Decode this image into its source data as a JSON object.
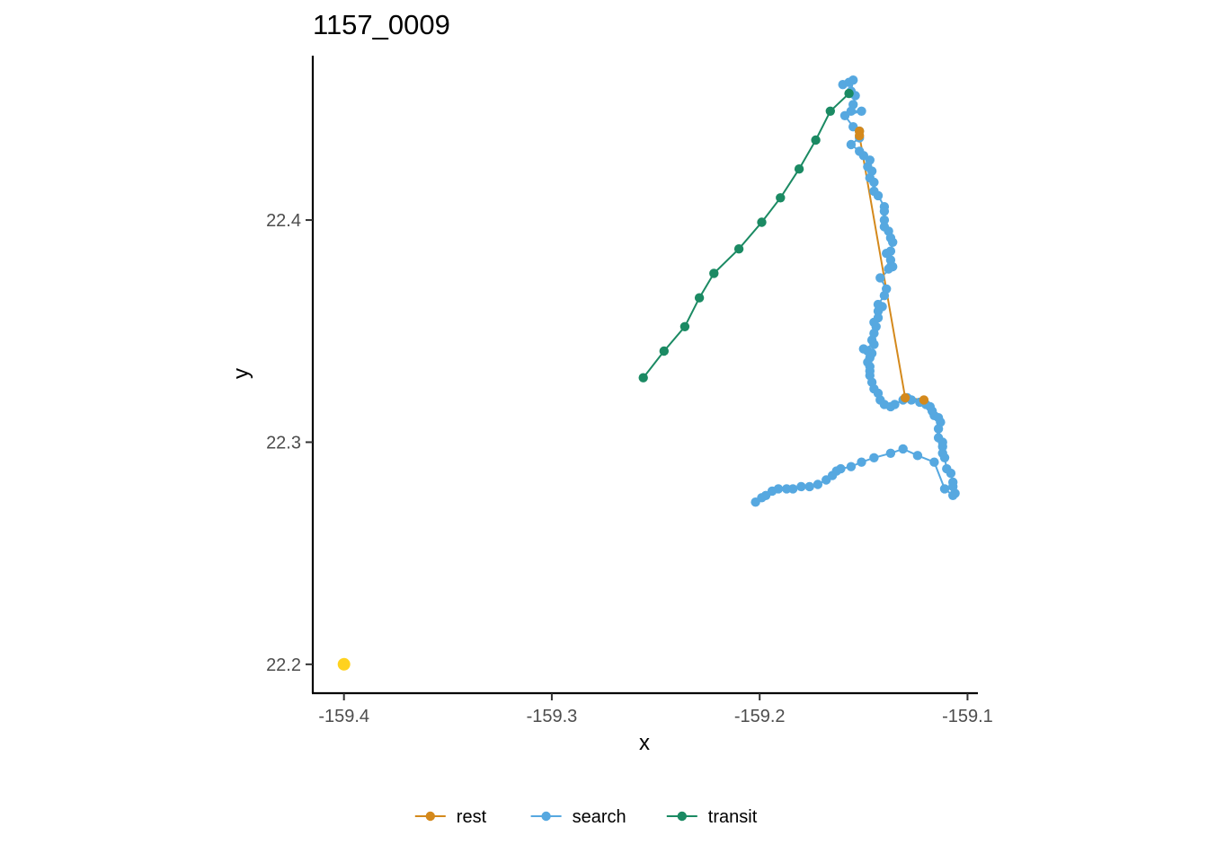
{
  "chart_data": {
    "type": "scatter",
    "title": "1157_0009",
    "xlabel": "x",
    "ylabel": "y",
    "xlim": [
      -159.415,
      -159.095
    ],
    "ylim": [
      22.187,
      22.474
    ],
    "x_ticks": [
      -159.4,
      -159.3,
      -159.2,
      -159.1
    ],
    "x_tick_labels": [
      "-159.4",
      "-159.3",
      "-159.2",
      "-159.1"
    ],
    "y_ticks": [
      22.2,
      22.3,
      22.4
    ],
    "y_tick_labels": [
      "22.2",
      "22.3",
      "22.4"
    ],
    "grid": false,
    "legend_position": "bottom",
    "colors": {
      "rest": "#d4891c",
      "search": "#56a8e0",
      "transit": "#1b8a63",
      "start": "#ffd21f"
    },
    "series": [
      {
        "name": "transit",
        "points": [
          [
            -159.256,
            22.329
          ],
          [
            -159.246,
            22.341
          ],
          [
            -159.236,
            22.352
          ],
          [
            -159.229,
            22.365
          ],
          [
            -159.222,
            22.376
          ],
          [
            -159.21,
            22.387
          ],
          [
            -159.199,
            22.399
          ],
          [
            -159.19,
            22.41
          ],
          [
            -159.181,
            22.423
          ],
          [
            -159.173,
            22.436
          ],
          [
            -159.166,
            22.449
          ],
          [
            -159.157,
            22.457
          ]
        ]
      },
      {
        "name": "search",
        "points": [
          [
            -159.16,
            22.461
          ],
          [
            -159.157,
            22.462
          ],
          [
            -159.155,
            22.463
          ],
          [
            -159.156,
            22.458
          ],
          [
            -159.154,
            22.456
          ],
          [
            -159.155,
            22.452
          ],
          [
            -159.156,
            22.449
          ],
          [
            -159.151,
            22.449
          ],
          [
            -159.159,
            22.447
          ],
          [
            -159.155,
            22.442
          ],
          [
            -159.152,
            22.44
          ],
          [
            -159.152,
            22.437
          ],
          [
            -159.156,
            22.434
          ],
          [
            -159.152,
            22.431
          ],
          [
            -159.15,
            22.429
          ],
          [
            -159.147,
            22.427
          ],
          [
            -159.148,
            22.424
          ],
          [
            -159.146,
            22.422
          ],
          [
            -159.147,
            22.419
          ],
          [
            -159.145,
            22.417
          ],
          [
            -159.145,
            22.413
          ],
          [
            -159.143,
            22.411
          ],
          [
            -159.14,
            22.406
          ],
          [
            -159.14,
            22.404
          ],
          [
            -159.14,
            22.4
          ],
          [
            -159.14,
            22.397
          ],
          [
            -159.138,
            22.395
          ],
          [
            -159.137,
            22.392
          ],
          [
            -159.136,
            22.39
          ],
          [
            -159.137,
            22.386
          ],
          [
            -159.139,
            22.385
          ],
          [
            -159.137,
            22.382
          ],
          [
            -159.137,
            22.379
          ],
          [
            -159.138,
            22.378
          ],
          [
            -159.136,
            22.379
          ],
          [
            -159.142,
            22.374
          ],
          [
            -159.139,
            22.369
          ],
          [
            -159.14,
            22.366
          ],
          [
            -159.143,
            22.362
          ],
          [
            -159.141,
            22.361
          ],
          [
            -159.143,
            22.359
          ],
          [
            -159.143,
            22.356
          ],
          [
            -159.145,
            22.354
          ],
          [
            -159.144,
            22.352
          ],
          [
            -159.145,
            22.349
          ],
          [
            -159.146,
            22.346
          ],
          [
            -159.145,
            22.344
          ],
          [
            -159.15,
            22.342
          ],
          [
            -159.148,
            22.341
          ],
          [
            -159.146,
            22.34
          ],
          [
            -159.147,
            22.338
          ],
          [
            -159.148,
            22.336
          ],
          [
            -159.147,
            22.334
          ],
          [
            -159.147,
            22.332
          ],
          [
            -159.147,
            22.33
          ],
          [
            -159.146,
            22.327
          ],
          [
            -159.145,
            22.324
          ],
          [
            -159.143,
            22.322
          ],
          [
            -159.142,
            22.319
          ],
          [
            -159.14,
            22.317
          ],
          [
            -159.137,
            22.316
          ],
          [
            -159.135,
            22.317
          ],
          [
            -159.131,
            22.319
          ],
          [
            -159.129,
            22.32
          ],
          [
            -159.127,
            22.319
          ],
          [
            -159.123,
            22.318
          ],
          [
            -159.12,
            22.317
          ],
          [
            -159.118,
            22.316
          ],
          [
            -159.117,
            22.314
          ],
          [
            -159.116,
            22.312
          ],
          [
            -159.114,
            22.311
          ],
          [
            -159.113,
            22.309
          ],
          [
            -159.114,
            22.306
          ],
          [
            -159.114,
            22.302
          ],
          [
            -159.112,
            22.3
          ],
          [
            -159.112,
            22.298
          ],
          [
            -159.112,
            22.295
          ],
          [
            -159.111,
            22.293
          ],
          [
            -159.11,
            22.288
          ],
          [
            -159.108,
            22.286
          ],
          [
            -159.107,
            22.282
          ],
          [
            -159.107,
            22.28
          ],
          [
            -159.106,
            22.277
          ],
          [
            -159.107,
            22.276
          ],
          [
            -159.111,
            22.279
          ],
          [
            -159.116,
            22.291
          ],
          [
            -159.124,
            22.294
          ],
          [
            -159.131,
            22.297
          ],
          [
            -159.137,
            22.295
          ],
          [
            -159.145,
            22.293
          ],
          [
            -159.151,
            22.291
          ],
          [
            -159.156,
            22.289
          ],
          [
            -159.161,
            22.288
          ],
          [
            -159.163,
            22.287
          ],
          [
            -159.165,
            22.285
          ],
          [
            -159.168,
            22.283
          ],
          [
            -159.172,
            22.281
          ],
          [
            -159.176,
            22.28
          ],
          [
            -159.18,
            22.28
          ],
          [
            -159.184,
            22.279
          ],
          [
            -159.187,
            22.279
          ],
          [
            -159.191,
            22.279
          ],
          [
            -159.194,
            22.278
          ],
          [
            -159.197,
            22.276
          ],
          [
            -159.199,
            22.275
          ],
          [
            -159.202,
            22.273
          ]
        ]
      },
      {
        "name": "rest",
        "points": [
          [
            -159.152,
            22.44
          ],
          [
            -159.152,
            22.438
          ],
          [
            -159.13,
            22.32
          ],
          [
            -159.121,
            22.319
          ]
        ]
      },
      {
        "name": "start",
        "points": [
          [
            -159.4,
            22.2
          ]
        ]
      }
    ],
    "legend": [
      {
        "key": "rest",
        "label": "rest"
      },
      {
        "key": "search",
        "label": "search"
      },
      {
        "key": "transit",
        "label": "transit"
      }
    ]
  }
}
